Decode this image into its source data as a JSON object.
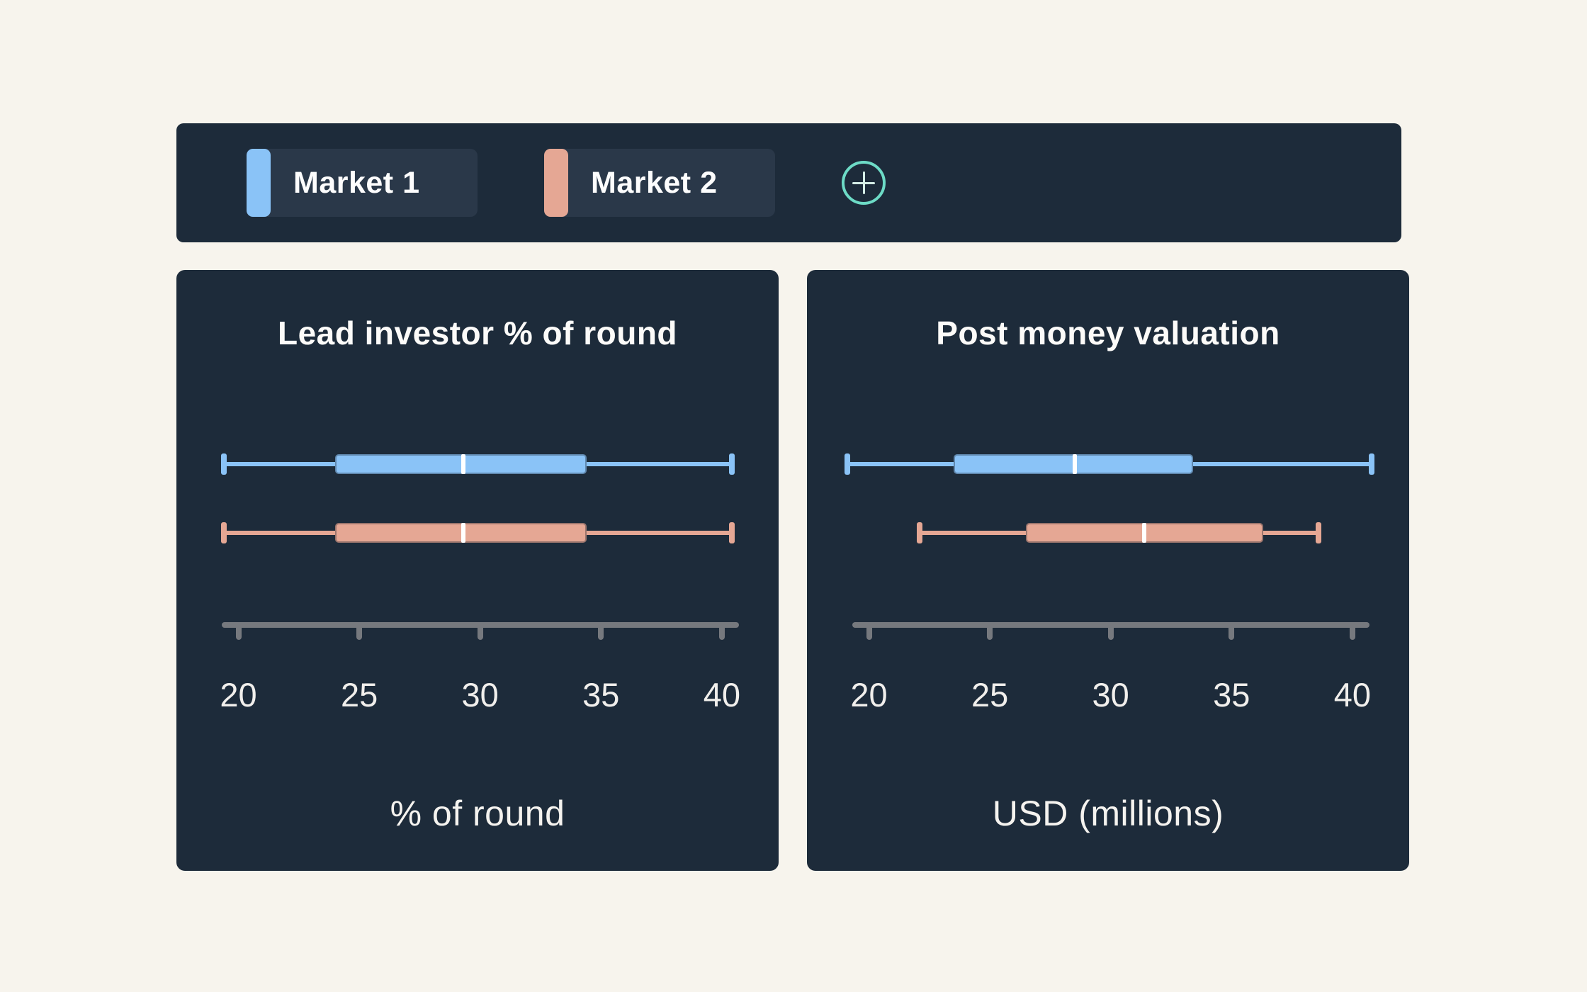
{
  "app": {
    "background_color": "#f7f4ed",
    "panel_color": "#1d2b3a",
    "chip_color": "#2a3849",
    "axis_color": "#76797e",
    "median_color": "#ffffff",
    "accent_teal": "#6ddbc6"
  },
  "legend": {
    "items": [
      {
        "label": "Market 1",
        "color": "#8ac3f7"
      },
      {
        "label": "Market 2",
        "color": "#e5a794"
      }
    ],
    "add_button": {
      "icon": "plus-circle-icon",
      "color": "#6ddbc6"
    }
  },
  "chart_data": [
    {
      "type": "boxplot",
      "orientation": "horizontal",
      "title": "Lead investor % of round",
      "xlabel": "% of round",
      "axis": {
        "min": 20,
        "max": 40,
        "ticks": [
          20,
          25,
          30,
          35,
          40
        ]
      },
      "grid": false,
      "legend_position": "top-bar",
      "series": [
        {
          "name": "Market 1",
          "color": "#8ac3f7",
          "min": 19.4,
          "q1": 24.0,
          "median": 29.3,
          "q3": 34.4,
          "max": 40.4
        },
        {
          "name": "Market 2",
          "color": "#e5a794",
          "min": 19.4,
          "q1": 24.0,
          "median": 29.3,
          "q3": 34.4,
          "max": 40.4
        }
      ]
    },
    {
      "type": "boxplot",
      "orientation": "horizontal",
      "title": "Post money valuation",
      "xlabel": "USD (millions)",
      "axis": {
        "min": 20,
        "max": 40,
        "ticks": [
          20,
          25,
          30,
          35,
          40
        ]
      },
      "grid": false,
      "legend_position": "top-bar",
      "series": [
        {
          "name": "Market 1",
          "color": "#8ac3f7",
          "min": 19.1,
          "q1": 23.5,
          "median": 28.5,
          "q3": 33.4,
          "max": 40.8
        },
        {
          "name": "Market 2",
          "color": "#e5a794",
          "min": 22.1,
          "q1": 26.5,
          "median": 31.4,
          "q3": 36.3,
          "max": 38.6
        }
      ]
    }
  ]
}
